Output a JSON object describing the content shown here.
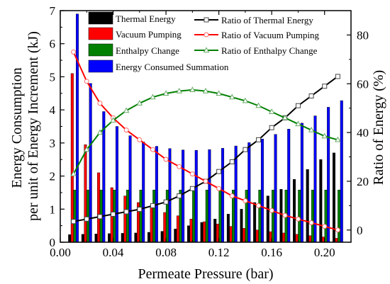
{
  "chart_data": {
    "type": "bar",
    "xlabel": "Permeate Pressure (bar)",
    "ylabel_left": [
      "Energy Consumption",
      "per unit of Energy Increment (kJ)"
    ],
    "ylabel_right": "Ratio of Energy (%)",
    "xlim": [
      0.0,
      0.22
    ],
    "ylim_left": [
      0,
      7
    ],
    "ylim_right": [
      -5,
      90
    ],
    "x_ticks": [
      0.0,
      0.04,
      0.08,
      0.12,
      0.16,
      0.2
    ],
    "x_tick_labels": [
      "0.00",
      "0.04",
      "0.08",
      "0.12",
      "0.16",
      "0.20"
    ],
    "y_left_ticks": [
      0,
      1,
      2,
      3,
      4,
      5,
      6,
      7
    ],
    "y_left_tick_labels": [
      "0",
      "1",
      "2",
      "3",
      "4",
      "5",
      "6",
      "7"
    ],
    "y_right_ticks": [
      0,
      20,
      40,
      60,
      80
    ],
    "y_right_tick_labels": [
      "0",
      "20",
      "40",
      "60",
      "80"
    ],
    "legend_position": "top",
    "x": [
      0.01,
      0.02,
      0.03,
      0.04,
      0.05,
      0.06,
      0.07,
      0.08,
      0.09,
      0.1,
      0.11,
      0.12,
      0.13,
      0.14,
      0.15,
      0.16,
      0.17,
      0.18,
      0.19,
      0.2,
      0.21
    ],
    "bar_series": [
      {
        "name": "Thermal Energy",
        "color": "#000000",
        "values": [
          0.23,
          0.24,
          0.25,
          0.26,
          0.27,
          0.28,
          0.3,
          0.33,
          0.4,
          0.5,
          0.6,
          0.7,
          0.85,
          1.0,
          1.2,
          1.4,
          1.6,
          1.9,
          2.2,
          2.5,
          2.7
        ]
      },
      {
        "name": "Vacuum Pumping",
        "color": "#ff0000",
        "values": [
          5.1,
          2.95,
          2.1,
          1.65,
          1.4,
          1.2,
          1.05,
          0.9,
          0.8,
          0.7,
          0.62,
          0.55,
          0.48,
          0.42,
          0.37,
          0.32,
          0.28,
          0.24,
          0.2,
          0.16,
          0.12
        ]
      },
      {
        "name": "Enthalpy Change",
        "color": "#008000",
        "values": [
          1.58,
          1.58,
          1.58,
          1.58,
          1.58,
          1.58,
          1.58,
          1.58,
          1.58,
          1.58,
          1.58,
          1.58,
          1.58,
          1.58,
          1.58,
          1.58,
          1.58,
          1.58,
          1.58,
          1.58,
          1.58
        ]
      },
      {
        "name": "Energy Consumed Summation",
        "color": "#0000ff",
        "values": [
          6.9,
          4.8,
          3.95,
          3.5,
          3.22,
          3.03,
          2.9,
          2.83,
          2.79,
          2.78,
          2.8,
          2.84,
          2.91,
          3.01,
          3.12,
          3.26,
          3.42,
          3.6,
          3.82,
          4.08,
          4.28
        ]
      }
    ],
    "line_series": [
      {
        "name": "Ratio of Thermal Energy",
        "color": "#000000",
        "marker": "square",
        "values": [
          3.5,
          4.5,
          5.5,
          6.5,
          7.5,
          8.5,
          10,
          11.5,
          14,
          17,
          20,
          24,
          28,
          33,
          37,
          42,
          46,
          51,
          55,
          59,
          63
        ]
      },
      {
        "name": "Ratio of Vacuum Pumping",
        "color": "#ff0000",
        "marker": "circle",
        "values": [
          73,
          61,
          52,
          46,
          41,
          37,
          33,
          29,
          26,
          23,
          20,
          17,
          14,
          12,
          10,
          8,
          6,
          4.5,
          3,
          1.5,
          0
        ]
      },
      {
        "name": "Ratio of Enthalpy Change",
        "color": "#008000",
        "marker": "triangle",
        "values": [
          23,
          33,
          40,
          45,
          49,
          52,
          54.5,
          56,
          57,
          57.5,
          57,
          56,
          54.5,
          53,
          51,
          48.5,
          46,
          43.5,
          41,
          38.5,
          37
        ]
      }
    ]
  }
}
